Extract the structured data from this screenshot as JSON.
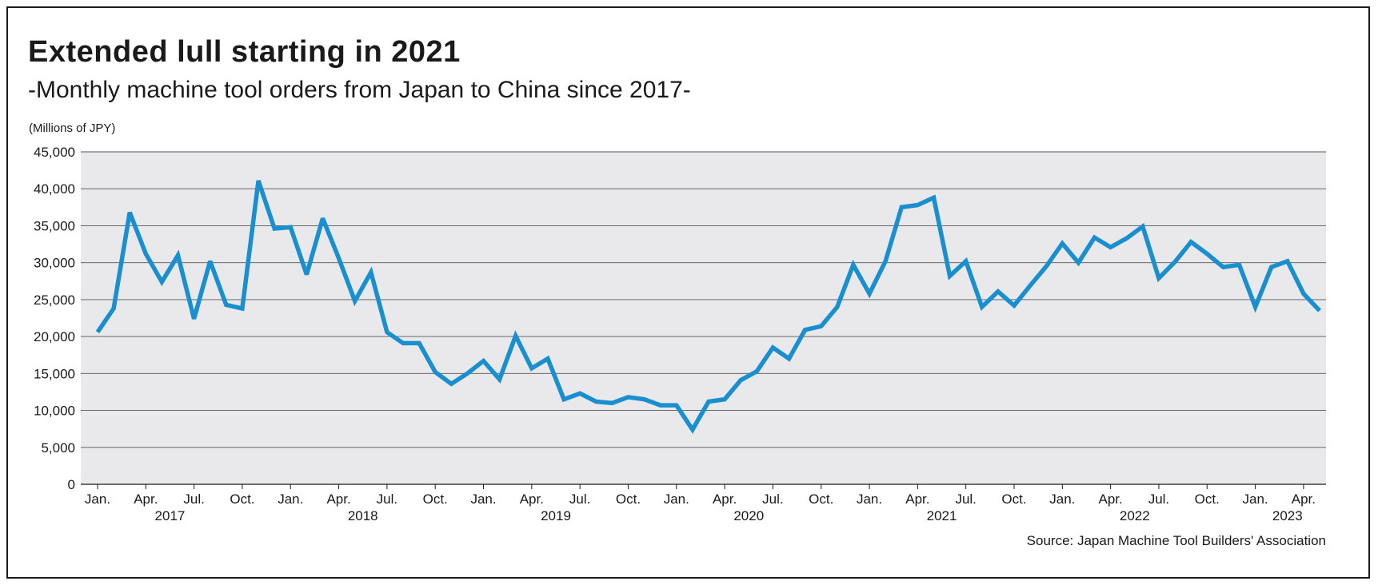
{
  "chart_data": {
    "type": "line",
    "title": "Extended lull starting in 2021",
    "subtitle": "-Monthly machine tool orders from Japan to China since 2017-",
    "ylabel": "(Millions of JPY)",
    "xlabel": "",
    "ylim": [
      0,
      45000
    ],
    "yticks": [
      0,
      5000,
      10000,
      15000,
      20000,
      25000,
      30000,
      35000,
      40000,
      45000
    ],
    "ytick_labels": [
      "0",
      "5,000",
      "10,000",
      "15,000",
      "20,000",
      "25,000",
      "30,000",
      "35,000",
      "40,000",
      "45,000"
    ],
    "grid": true,
    "source": "Source: Japan Machine Tool Builders' Association",
    "month_ticks": [
      {
        "index": 0,
        "label": "Jan."
      },
      {
        "index": 3,
        "label": "Apr."
      },
      {
        "index": 6,
        "label": "Jul."
      },
      {
        "index": 9,
        "label": "Oct."
      },
      {
        "index": 12,
        "label": "Jan."
      },
      {
        "index": 15,
        "label": "Apr."
      },
      {
        "index": 18,
        "label": "Jul."
      },
      {
        "index": 21,
        "label": "Oct."
      },
      {
        "index": 24,
        "label": "Jan."
      },
      {
        "index": 27,
        "label": "Apr."
      },
      {
        "index": 30,
        "label": "Jul."
      },
      {
        "index": 33,
        "label": "Oct."
      },
      {
        "index": 36,
        "label": "Jan."
      },
      {
        "index": 39,
        "label": "Apr."
      },
      {
        "index": 42,
        "label": "Jul."
      },
      {
        "index": 45,
        "label": "Oct."
      },
      {
        "index": 48,
        "label": "Jan."
      },
      {
        "index": 51,
        "label": "Apr."
      },
      {
        "index": 54,
        "label": "Jul."
      },
      {
        "index": 57,
        "label": "Oct."
      },
      {
        "index": 60,
        "label": "Jan."
      },
      {
        "index": 63,
        "label": "Apr."
      },
      {
        "index": 66,
        "label": "Jul."
      },
      {
        "index": 69,
        "label": "Oct."
      },
      {
        "index": 72,
        "label": "Jan."
      },
      {
        "index": 75,
        "label": "Apr."
      }
    ],
    "year_labels": [
      {
        "center_index": 4.5,
        "label": "2017"
      },
      {
        "center_index": 16.5,
        "label": "2018"
      },
      {
        "center_index": 28.5,
        "label": "2019"
      },
      {
        "center_index": 40.5,
        "label": "2020"
      },
      {
        "center_index": 52.5,
        "label": "2021"
      },
      {
        "center_index": 64.5,
        "label": "2022"
      },
      {
        "center_index": 74.0,
        "label": "2023"
      }
    ],
    "series": [
      {
        "name": "Monthly machine tool orders from Japan to China",
        "color": "#1a8fd0",
        "start": "2017-01",
        "values": [
          20600,
          23800,
          36800,
          31200,
          27400,
          31000,
          22400,
          30200,
          24300,
          23800,
          41100,
          34600,
          34800,
          28400,
          36000,
          30600,
          24800,
          28700,
          20600,
          19100,
          19100,
          15200,
          13600,
          15000,
          16700,
          14200,
          20100,
          15700,
          17000,
          11500,
          12300,
          11200,
          11000,
          11800,
          11500,
          10700,
          10700,
          7400,
          11200,
          11500,
          14100,
          15300,
          18500,
          17000,
          20900,
          21400,
          24000,
          29700,
          25800,
          30200,
          37500,
          37800,
          38800,
          28200,
          30200,
          24000,
          26100,
          24200,
          26900,
          29500,
          32600,
          30000,
          33400,
          32100,
          33300,
          34900,
          27900,
          30100,
          32800,
          31200,
          29400,
          29700,
          24000,
          29400,
          30200,
          25800,
          23500
        ]
      }
    ]
  }
}
